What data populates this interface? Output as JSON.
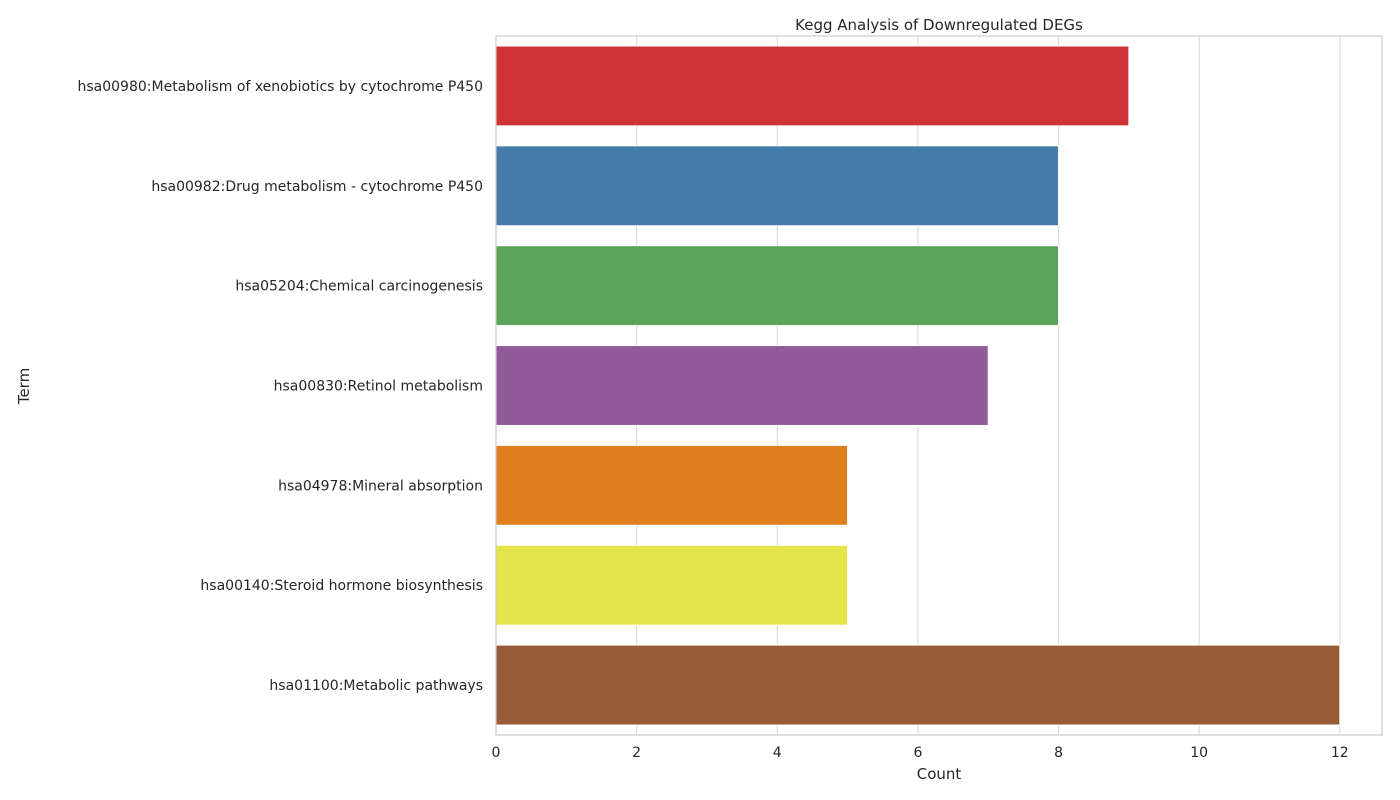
{
  "chart_data": {
    "type": "bar",
    "orientation": "horizontal",
    "title": "Kegg Analysis of Downregulated DEGs",
    "xlabel": "Count",
    "ylabel": "Term",
    "categories": [
      "hsa00980:Metabolism of xenobiotics by cytochrome P450",
      "hsa00982:Drug metabolism - cytochrome P450",
      "hsa05204:Chemical carcinogenesis",
      "hsa00830:Retinol metabolism",
      "hsa04978:Mineral absorption",
      "hsa00140:Steroid hormone biosynthesis",
      "hsa01100:Metabolic pathways"
    ],
    "values": [
      9,
      8,
      8,
      7,
      5,
      5,
      12
    ],
    "colors": [
      "#d03336",
      "#467cab",
      "#5ba45a",
      "#915a99",
      "#e07f1e",
      "#e5e54b",
      "#975b38"
    ],
    "xlim": [
      0,
      12.6
    ],
    "xticks": [
      0,
      2,
      4,
      6,
      8,
      10,
      12
    ],
    "grid": true,
    "legend": "none"
  }
}
